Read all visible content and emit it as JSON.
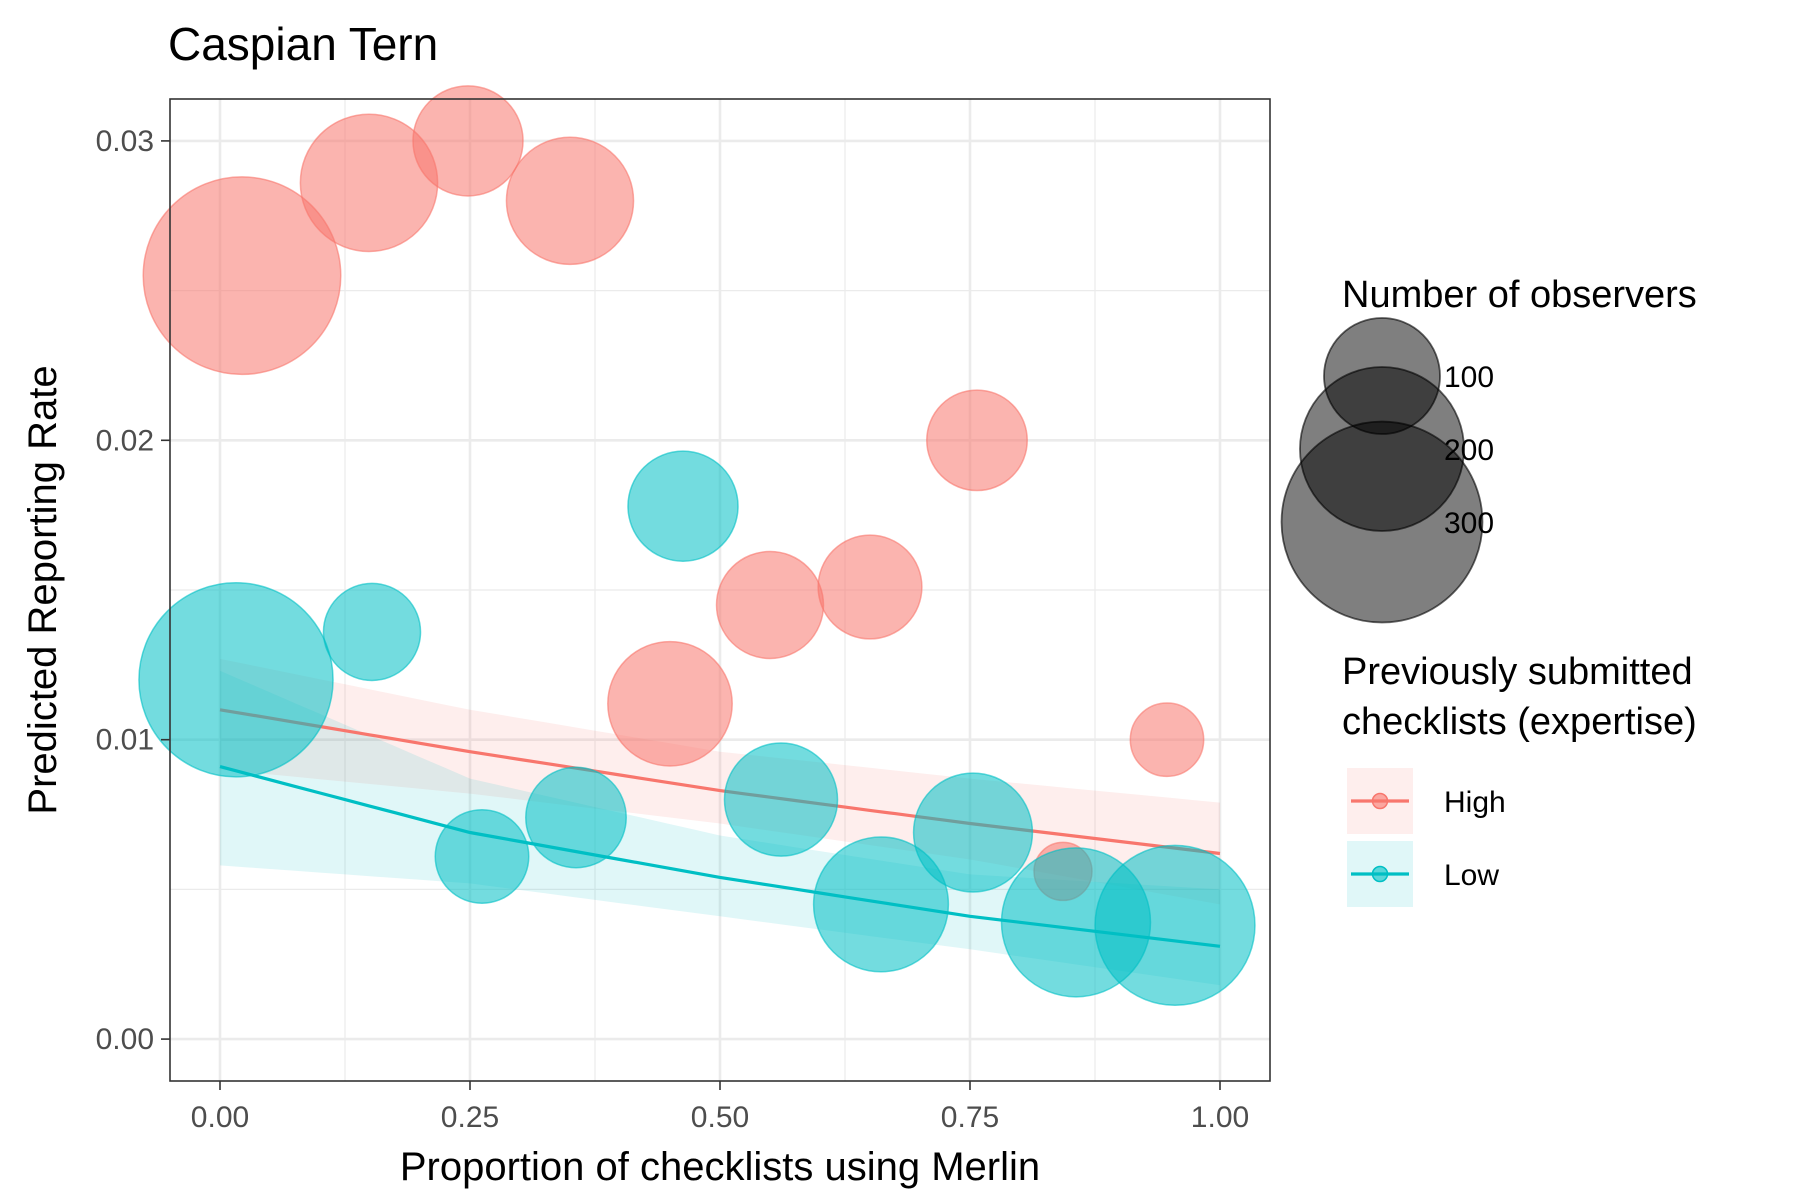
{
  "chart_data": {
    "type": "scatter",
    "title": "Caspian Tern",
    "xlabel": "Proportion of checklists using Merlin",
    "ylabel": "Predicted Reporting Rate",
    "xlim": [
      -0.05,
      1.05
    ],
    "ylim": [
      -0.0014,
      0.0314
    ],
    "x_ticks": [
      0.0,
      0.25,
      0.5,
      0.75,
      1.0
    ],
    "x_tick_labels": [
      "0.00",
      "0.25",
      "0.50",
      "0.75",
      "1.00"
    ],
    "y_ticks": [
      0.0,
      0.01,
      0.02,
      0.03
    ],
    "y_tick_labels": [
      "0.00",
      "0.01",
      "0.02",
      "0.03"
    ],
    "grid": true,
    "legend_position": "right",
    "size_legend": {
      "title": "Number of observers",
      "entries": [
        {
          "label": "100",
          "value": 100
        },
        {
          "label": "200",
          "value": 200
        },
        {
          "label": "300",
          "value": 300
        }
      ]
    },
    "color_legend": {
      "title": [
        "Previously submitted",
        "checklists (expertise)"
      ],
      "entries": [
        {
          "label": "High",
          "color": "#F8766D"
        },
        {
          "label": "Low",
          "color": "#00BFC4"
        }
      ]
    },
    "series": [
      {
        "name": "High",
        "color": "#F8766D",
        "points": [
          {
            "x": 0.022,
            "y": 0.0255,
            "n": 290
          },
          {
            "x": 0.149,
            "y": 0.0286,
            "n": 140
          },
          {
            "x": 0.248,
            "y": 0.03,
            "n": 90
          },
          {
            "x": 0.35,
            "y": 0.028,
            "n": 120
          },
          {
            "x": 0.45,
            "y": 0.0112,
            "n": 115
          },
          {
            "x": 0.55,
            "y": 0.0145,
            "n": 85
          },
          {
            "x": 0.65,
            "y": 0.0151,
            "n": 80
          },
          {
            "x": 0.757,
            "y": 0.02,
            "n": 75
          },
          {
            "x": 0.843,
            "y": 0.0056,
            "n": 25
          },
          {
            "x": 0.947,
            "y": 0.01,
            "n": 40
          }
        ],
        "fit": {
          "x": [
            0.0,
            0.25,
            0.5,
            0.75,
            1.0
          ],
          "y": [
            0.011,
            0.0096,
            0.0083,
            0.0072,
            0.0062
          ],
          "lower": [
            0.009,
            0.0082,
            0.0072,
            0.006,
            0.0045
          ],
          "upper": [
            0.0127,
            0.011,
            0.0096,
            0.0087,
            0.0079
          ]
        }
      },
      {
        "name": "Low",
        "color": "#00BFC4",
        "points": [
          {
            "x": 0.016,
            "y": 0.012,
            "n": 280
          },
          {
            "x": 0.152,
            "y": 0.0136,
            "n": 70
          },
          {
            "x": 0.262,
            "y": 0.0061,
            "n": 65
          },
          {
            "x": 0.356,
            "y": 0.0074,
            "n": 75
          },
          {
            "x": 0.463,
            "y": 0.0178,
            "n": 90
          },
          {
            "x": 0.561,
            "y": 0.008,
            "n": 95
          },
          {
            "x": 0.661,
            "y": 0.0045,
            "n": 135
          },
          {
            "x": 0.753,
            "y": 0.0069,
            "n": 105
          },
          {
            "x": 0.856,
            "y": 0.0039,
            "n": 165
          },
          {
            "x": 0.955,
            "y": 0.0038,
            "n": 190
          }
        ],
        "fit": {
          "x": [
            0.0,
            0.25,
            0.5,
            0.75,
            1.0
          ],
          "y": [
            0.0091,
            0.0069,
            0.0054,
            0.0041,
            0.0031
          ],
          "lower": [
            0.0058,
            0.0052,
            0.0041,
            0.003,
            0.0018
          ],
          "upper": [
            0.0123,
            0.0087,
            0.0068,
            0.0055,
            0.005
          ]
        }
      }
    ]
  }
}
